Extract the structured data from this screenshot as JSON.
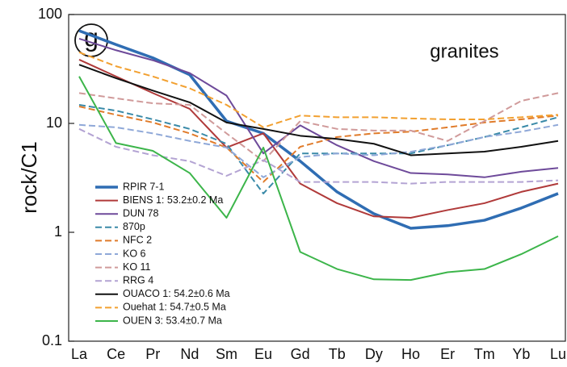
{
  "chart_data": {
    "type": "line",
    "panel_label": "g",
    "annotation": "granites",
    "y_label": "rock/C1",
    "log_y": true,
    "ylim": [
      0.1,
      100
    ],
    "yticks": [
      0.1,
      1,
      10,
      100
    ],
    "legend_position": "lower left",
    "categories": [
      "La",
      "Ce",
      "Pr",
      "Nd",
      "Sm",
      "Eu",
      "Gd",
      "Tb",
      "Dy",
      "Ho",
      "Er",
      "Tm",
      "Yb",
      "Lu"
    ],
    "series": [
      {
        "name": "RPIR 7-1",
        "color": "#2f6db3",
        "dashed": false,
        "values": [
          71,
          53,
          40,
          28,
          10.5,
          8.1,
          4.5,
          2.35,
          1.48,
          1.09,
          1.15,
          1.29,
          1.67,
          2.27
        ]
      },
      {
        "name": "BIENS 1: 53.2±0.2 Ma",
        "color": "#b03a3a",
        "dashed": false,
        "values": [
          38.5,
          27,
          19,
          13.6,
          6,
          8.1,
          2.8,
          1.85,
          1.4,
          1.36,
          1.6,
          1.85,
          2.35,
          2.8
        ]
      },
      {
        "name": "DUN 78",
        "color": "#6e4a9a",
        "dashed": false,
        "values": [
          60,
          47,
          38,
          29,
          18,
          5.3,
          9.6,
          6.3,
          4.5,
          3.5,
          3.4,
          3.2,
          3.6,
          3.9
        ]
      },
      {
        "name": "870p",
        "color": "#3a8aa8",
        "dashed": true,
        "values": [
          14.8,
          13.1,
          10.9,
          8.9,
          6.5,
          2.27,
          5.3,
          5.3,
          5.3,
          5.3,
          6.3,
          7.5,
          9.2,
          11.4
        ]
      },
      {
        "name": "NFC 2",
        "color": "#e07b2a",
        "dashed": true,
        "values": [
          14.3,
          12,
          10.2,
          8.1,
          6,
          2.9,
          6.1,
          7.5,
          8.1,
          8.4,
          9.2,
          10.2,
          10.9,
          11.8
        ]
      },
      {
        "name": "KO 6",
        "color": "#8fa8d8",
        "dashed": true,
        "values": [
          9.7,
          9.2,
          8.1,
          6.9,
          6,
          3.2,
          4.9,
          5.3,
          5.1,
          5.5,
          6.3,
          7.5,
          8.4,
          9.7
        ]
      },
      {
        "name": "KO 11",
        "color": "#d09a9a",
        "dashed": true,
        "values": [
          19,
          17,
          15.3,
          14.8,
          8.1,
          4.5,
          10.5,
          8.9,
          8.6,
          8.6,
          6.9,
          10.5,
          16.1,
          19
        ]
      },
      {
        "name": "RRG 4",
        "color": "#b3a3d3",
        "dashed": true,
        "values": [
          8.9,
          6.1,
          5.1,
          4.5,
          3.3,
          4.6,
          2.9,
          2.9,
          2.9,
          2.8,
          2.9,
          2.9,
          2.9,
          3.0
        ]
      },
      {
        "name": "OUACO 1: 54.2±0.6 Ma",
        "color": "#111111",
        "dashed": false,
        "values": [
          34.6,
          26,
          20,
          15.6,
          10.2,
          8.9,
          7.7,
          7.2,
          6.5,
          5.1,
          5.3,
          5.5,
          6.1,
          6.9
        ]
      },
      {
        "name": "Ouehat 1: 54.7±0.5 Ma",
        "color": "#f2a030",
        "dashed": true,
        "values": [
          45,
          33.5,
          27,
          21,
          14.8,
          9.2,
          11.8,
          11.4,
          11.4,
          11.1,
          10.9,
          10.9,
          11.4,
          12
        ]
      },
      {
        "name": "OUEN 3: 53.4±0.7 Ma",
        "color": "#3cb54a",
        "dashed": false,
        "values": [
          27,
          6.6,
          5.6,
          3.5,
          1.36,
          6,
          0.66,
          0.46,
          0.37,
          0.365,
          0.43,
          0.46,
          0.63,
          0.92
        ]
      }
    ]
  }
}
